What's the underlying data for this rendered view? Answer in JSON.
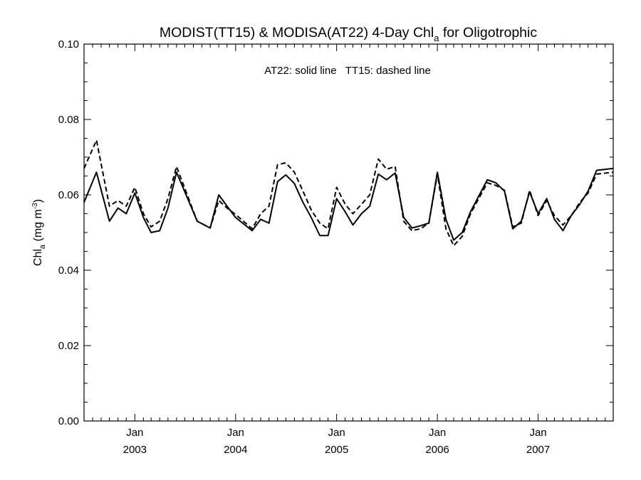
{
  "chart_data": {
    "type": "line",
    "title_main": "MODIST(TT15) & MODISA(AT22) 4-Day Chl",
    "title_sub": "a",
    "title_tail": " for Oligotrophic",
    "annotation": "AT22: solid line   TT15: dashed line",
    "ylabel_main": "Chl",
    "ylabel_sub": "a",
    "ylabel_unit": " (mg m",
    "ylabel_sup": "-3",
    "ylabel_close": ")",
    "ylim": [
      0.0,
      0.1
    ],
    "yticks": [
      "0.00",
      "0.02",
      "0.04",
      "0.06",
      "0.08",
      "0.10"
    ],
    "x_ticks": [
      {
        "month": "Jan",
        "year": "2003",
        "date": "2003-01-01"
      },
      {
        "month": "Jan",
        "year": "2004",
        "date": "2004-01-01"
      },
      {
        "month": "Jan",
        "year": "2005",
        "date": "2005-01-01"
      },
      {
        "month": "Jan",
        "year": "2006",
        "date": "2006-01-01"
      },
      {
        "month": "Jan",
        "year": "2007",
        "date": "2007-01-01"
      }
    ],
    "xlim": [
      "2002-07-01",
      "2007-09-30"
    ],
    "grid": false,
    "series": [
      {
        "name": "AT22",
        "style": "solid",
        "color": "#000000",
        "x": [
          "2002-07-01",
          "2002-08-15",
          "2002-10-01",
          "2002-11-01",
          "2002-12-01",
          "2003-01-01",
          "2003-02-01",
          "2003-03-01",
          "2003-04-01",
          "2003-05-01",
          "2003-06-01",
          "2003-08-15",
          "2003-10-01",
          "2003-11-01",
          "2003-12-01",
          "2004-01-01",
          "2004-03-01",
          "2004-04-01",
          "2004-05-01",
          "2004-06-01",
          "2004-07-01",
          "2004-08-01",
          "2004-09-01",
          "2004-10-01",
          "2004-11-01",
          "2004-12-01",
          "2005-01-01",
          "2005-02-01",
          "2005-03-01",
          "2005-04-01",
          "2005-05-01",
          "2005-06-01",
          "2005-07-01",
          "2005-08-01",
          "2005-09-01",
          "2005-10-01",
          "2005-11-01",
          "2005-12-01",
          "2006-01-01",
          "2006-02-01",
          "2006-03-01",
          "2006-04-01",
          "2006-05-01",
          "2006-07-01",
          "2006-08-01",
          "2006-09-01",
          "2006-10-01",
          "2006-11-01",
          "2006-12-01",
          "2007-01-01",
          "2007-02-01",
          "2007-03-01",
          "2007-04-01",
          "2007-05-01",
          "2007-06-01",
          "2007-07-01",
          "2007-08-01",
          "2007-09-30"
        ],
        "y": [
          0.058,
          0.066,
          0.053,
          0.0565,
          0.055,
          0.0605,
          0.054,
          0.05,
          0.0505,
          0.0565,
          0.066,
          0.053,
          0.0512,
          0.06,
          0.057,
          0.054,
          0.0505,
          0.0535,
          0.0525,
          0.0635,
          0.0653,
          0.063,
          0.058,
          0.054,
          0.0492,
          0.0492,
          0.059,
          0.0555,
          0.052,
          0.055,
          0.057,
          0.0655,
          0.064,
          0.0658,
          0.054,
          0.0512,
          0.0518,
          0.0525,
          0.066,
          0.0535,
          0.048,
          0.05,
          0.0555,
          0.064,
          0.0632,
          0.061,
          0.051,
          0.053,
          0.0608,
          0.055,
          0.059,
          0.0535,
          0.0505,
          0.0545,
          0.0575,
          0.061,
          0.0665,
          0.067
        ]
      },
      {
        "name": "TT15",
        "style": "dashed",
        "color": "#000000",
        "x": [
          "2002-07-01",
          "2002-08-15",
          "2002-10-01",
          "2002-11-01",
          "2002-12-01",
          "2003-01-01",
          "2003-02-01",
          "2003-03-01",
          "2003-04-01",
          "2003-05-01",
          "2003-06-01",
          "2003-08-15",
          "2003-10-01",
          "2003-11-01",
          "2003-12-01",
          "2004-01-01",
          "2004-03-01",
          "2004-04-01",
          "2004-05-01",
          "2004-06-01",
          "2004-07-01",
          "2004-08-01",
          "2004-09-01",
          "2004-10-01",
          "2004-11-01",
          "2004-12-01",
          "2005-01-01",
          "2005-02-01",
          "2005-03-01",
          "2005-04-01",
          "2005-05-01",
          "2005-06-01",
          "2005-07-01",
          "2005-08-01",
          "2005-09-01",
          "2005-10-01",
          "2005-11-01",
          "2005-12-01",
          "2006-01-01",
          "2006-02-01",
          "2006-03-01",
          "2006-04-01",
          "2006-05-01",
          "2006-07-01",
          "2006-08-01",
          "2006-09-01",
          "2006-10-01",
          "2006-11-01",
          "2006-12-01",
          "2007-01-01",
          "2007-02-01",
          "2007-03-01",
          "2007-04-01",
          "2007-05-01",
          "2007-06-01",
          "2007-07-01",
          "2007-08-01",
          "2007-09-30"
        ],
        "y": [
          0.067,
          0.0745,
          0.057,
          0.0585,
          0.057,
          0.062,
          0.055,
          0.0515,
          0.053,
          0.059,
          0.0675,
          0.053,
          0.0512,
          0.0585,
          0.0565,
          0.0548,
          0.051,
          0.055,
          0.057,
          0.068,
          0.0685,
          0.066,
          0.061,
          0.056,
          0.0525,
          0.051,
          0.062,
          0.0575,
          0.055,
          0.0575,
          0.06,
          0.0695,
          0.0668,
          0.0675,
          0.053,
          0.0505,
          0.051,
          0.0525,
          0.0655,
          0.051,
          0.0465,
          0.049,
          0.055,
          0.0632,
          0.0625,
          0.0612,
          0.0515,
          0.0525,
          0.0612,
          0.0545,
          0.0585,
          0.0545,
          0.052,
          0.0545,
          0.058,
          0.0605,
          0.0655,
          0.066
        ]
      }
    ]
  }
}
